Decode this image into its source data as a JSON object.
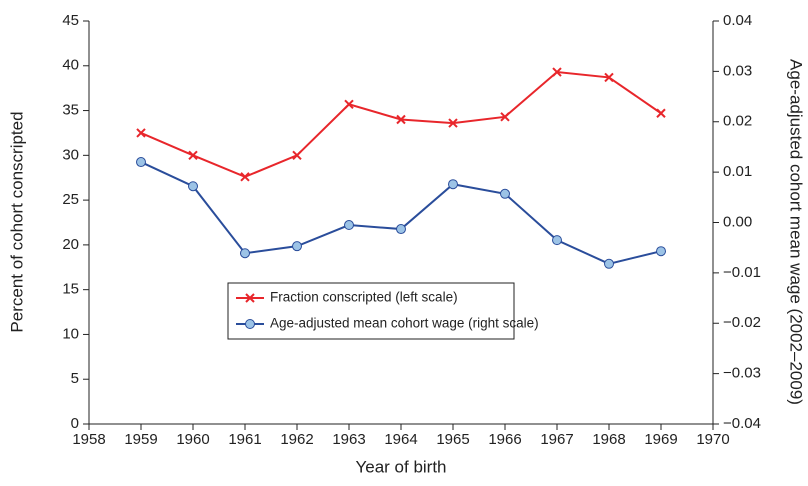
{
  "chart_data": {
    "type": "line",
    "x": [
      1959,
      1960,
      1961,
      1962,
      1963,
      1964,
      1965,
      1966,
      1967,
      1968,
      1969
    ],
    "xlabel": "Year of birth",
    "ylabel": "Percent of cohort conscripted",
    "y2label": "Age-adjusted cohort mean wage (2002–2009)",
    "xlim": [
      1958,
      1970
    ],
    "xticks": [
      1958,
      1959,
      1960,
      1961,
      1962,
      1963,
      1964,
      1965,
      1966,
      1967,
      1968,
      1969,
      1970
    ],
    "ylim": [
      0,
      45
    ],
    "yticks": [
      0,
      5,
      10,
      15,
      20,
      25,
      30,
      35,
      40,
      45
    ],
    "y2lim": [
      -0.04,
      0.04
    ],
    "y2ticks": [
      {
        "value": -0.04,
        "label": "−0.04"
      },
      {
        "value": -0.03,
        "label": "−0.03"
      },
      {
        "value": -0.02,
        "label": "−0.02"
      },
      {
        "value": -0.01,
        "label": "−0.01"
      },
      {
        "value": 0,
        "label": "0.00"
      },
      {
        "value": 0.01,
        "label": "0.01"
      },
      {
        "value": 0.02,
        "label": "0.02"
      },
      {
        "value": 0.03,
        "label": "0.03"
      },
      {
        "value": 0.04,
        "label": "0.04"
      }
    ],
    "legend_position": "center",
    "series": [
      {
        "name": "Fraction conscripted (left scale)",
        "color": "#e8262b",
        "marker": "x",
        "values": [
          32.5,
          30.0,
          27.6,
          30.0,
          35.7,
          34.0,
          33.6,
          34.3,
          39.3,
          38.7,
          34.7
        ]
      },
      {
        "name": "Age-adjusted mean cohort wage (right scale)",
        "color": "#2a4d9b",
        "marker": "o",
        "marker_fill": "#9cc3e6",
        "axis": "y2",
        "values": [
          0.012,
          0.0072,
          -0.0061,
          -0.0047,
          -0.0005,
          -0.0013,
          0.0076,
          0.0057,
          -0.0035,
          -0.0082,
          -0.0057
        ]
      }
    ]
  }
}
